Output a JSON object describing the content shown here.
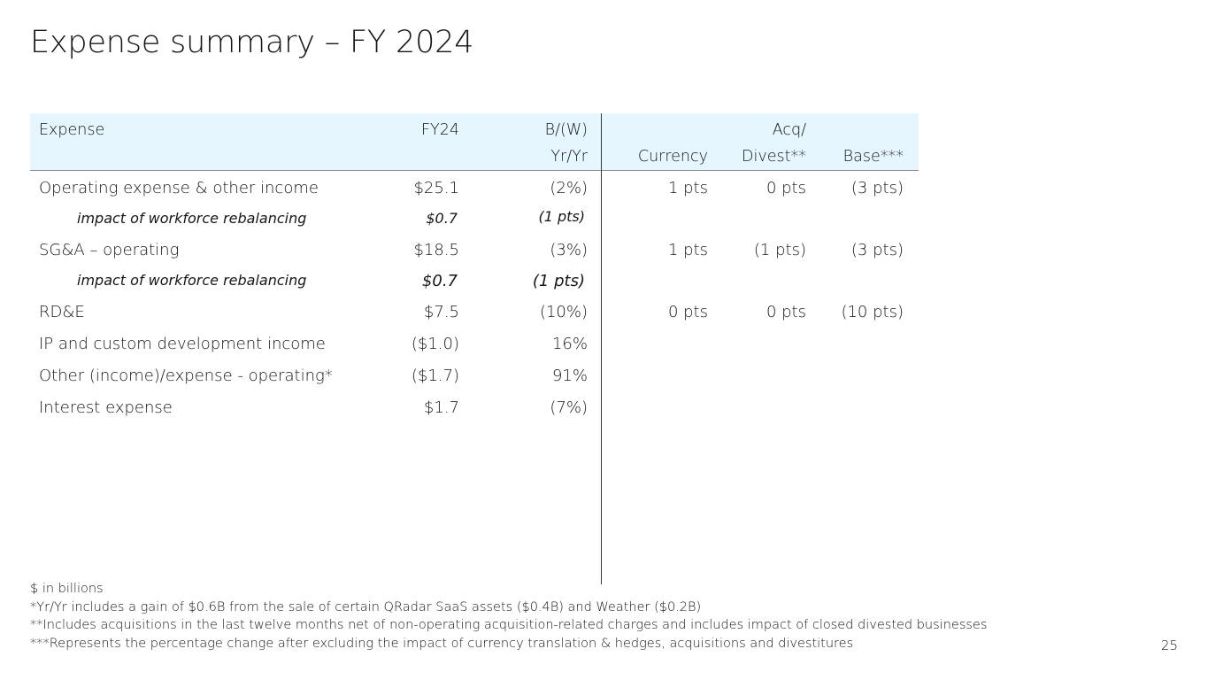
{
  "title": "Expense summary – FY 2024",
  "table": {
    "headers": {
      "expense": "Expense",
      "fy24": "FY24",
      "bw_line1": "B/(W)",
      "bw_line2": "Yr/Yr",
      "currency": "Currency",
      "acq_line1": "Acq/",
      "acq_line2": "Divest**",
      "base": "Base***"
    },
    "rows": [
      {
        "name": "Operating expense & other income",
        "fy24": "$25.1",
        "bw": "(2%)",
        "currency": "1 pts",
        "acq": "0 pts",
        "base": "(3 pts)"
      },
      {
        "name": "impact of workforce rebalancing",
        "fy24": "$0.7",
        "bw": "(1 pts)",
        "currency": "",
        "acq": "",
        "base": ""
      },
      {
        "name": "SG&A – operating",
        "fy24": "$18.5",
        "bw": "(3%)",
        "currency": "1 pts",
        "acq": "(1 pts)",
        "base": "(3 pts)"
      },
      {
        "name": "impact of workforce rebalancing",
        "fy24": "$0.7",
        "bw": "(1 pts)",
        "currency": "",
        "acq": "",
        "base": ""
      },
      {
        "name": "RD&E",
        "fy24": "$7.5",
        "bw": "(10%)",
        "currency": "0 pts",
        "acq": "0 pts",
        "base": "(10 pts)"
      },
      {
        "name": "IP and custom development income",
        "fy24": "($1.0)",
        "bw": "16%",
        "currency": "",
        "acq": "",
        "base": ""
      },
      {
        "name": "Other (income)/expense - operating*",
        "fy24": "($1.7)",
        "bw": "91%",
        "currency": "",
        "acq": "",
        "base": ""
      },
      {
        "name": "Interest expense",
        "fy24": "$1.7",
        "bw": "(7%)",
        "currency": "",
        "acq": "",
        "base": ""
      }
    ]
  },
  "footnotes": [
    "$ in billions",
    "*Yr/Yr includes a gain of $0.6B from the sale of certain QRadar SaaS assets ($0.4B) and Weather ($0.2B)",
    "**Includes acquisitions in the last twelve months net of non-operating acquisition-related charges and includes impact of closed divested businesses",
    "***Represents the percentage change after excluding the impact of currency translation & hedges, acquisitions and divestitures"
  ],
  "page_number": "25",
  "colors": {
    "header_bg": "#e5f6ff",
    "text": "#161616",
    "divider": "#393939"
  }
}
